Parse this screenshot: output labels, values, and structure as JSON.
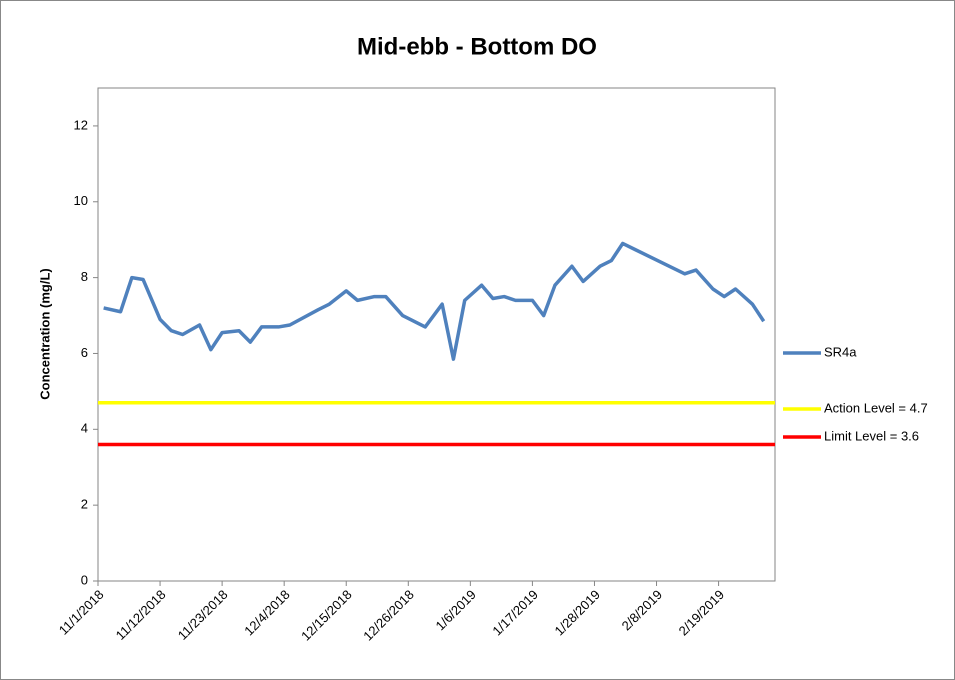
{
  "chart_data": {
    "type": "line",
    "title": "Mid-ebb - Bottom DO",
    "y_label": "Concentration (mg/L)",
    "xlim": [
      "11/1/2018",
      "3/1/2019"
    ],
    "xticks": [
      "11/1/2018",
      "11/12/2018",
      "11/23/2018",
      "12/4/2018",
      "12/15/2018",
      "12/26/2018",
      "1/6/2019",
      "1/17/2019",
      "1/28/2019",
      "2/8/2019",
      "2/19/2019"
    ],
    "ylim": [
      0,
      13
    ],
    "yticks": [
      0,
      2,
      4,
      6,
      8,
      10,
      12
    ],
    "grid": false,
    "legend": "right",
    "series": [
      {
        "name": "SR4a",
        "color": "#4f81bd",
        "x": [
          "11/2/2018",
          "11/5/2018",
          "11/7/2018",
          "11/9/2018",
          "11/12/2018",
          "11/14/2018",
          "11/16/2018",
          "11/19/2018",
          "11/21/2018",
          "11/23/2018",
          "11/26/2018",
          "11/28/2018",
          "11/30/2018",
          "12/3/2018",
          "12/5/2018",
          "12/10/2018",
          "12/12/2018",
          "12/15/2018",
          "12/17/2018",
          "12/20/2018",
          "12/22/2018",
          "12/25/2018",
          "12/29/2018",
          "1/1/2019",
          "1/3/2019",
          "1/5/2019",
          "1/8/2019",
          "1/10/2019",
          "1/12/2019",
          "1/14/2019",
          "1/17/2019",
          "1/19/2019",
          "1/21/2019",
          "1/24/2019",
          "1/26/2019",
          "1/29/2019",
          "1/31/2019",
          "2/2/2019",
          "2/13/2019",
          "2/15/2019",
          "2/18/2019",
          "2/20/2019",
          "2/22/2019",
          "2/25/2019",
          "2/27/2019"
        ],
        "values": [
          7.2,
          7.1,
          8.0,
          7.95,
          6.9,
          6.6,
          6.5,
          6.75,
          6.1,
          6.55,
          6.6,
          6.3,
          6.7,
          6.7,
          6.75,
          7.15,
          7.3,
          7.65,
          7.4,
          7.5,
          7.5,
          7.0,
          6.7,
          7.3,
          5.85,
          7.4,
          7.8,
          7.45,
          7.5,
          7.4,
          7.4,
          7.0,
          7.8,
          8.3,
          7.9,
          8.3,
          8.45,
          8.9,
          8.1,
          8.2,
          7.7,
          7.5,
          7.7,
          7.3,
          6.85
        ]
      }
    ],
    "reference_lines": [
      {
        "name": "Action Level = 4.7",
        "color": "#ffff00",
        "value": 4.7
      },
      {
        "name": "Limit Level = 3.6",
        "color": "#ff0000",
        "value": 3.6
      }
    ]
  }
}
